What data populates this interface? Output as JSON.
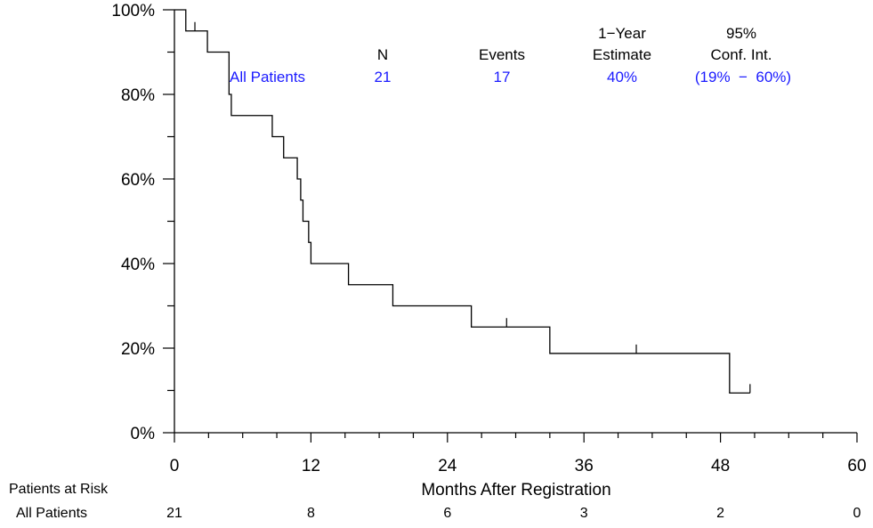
{
  "chart_data": {
    "type": "line",
    "xlabel": "Months After Registration",
    "ylabel": "",
    "xlim": [
      0,
      60
    ],
    "ylim": [
      0,
      100
    ],
    "x_ticks": [
      "0",
      "12",
      "24",
      "36",
      "48",
      "60"
    ],
    "y_ticks": [
      "0%",
      "20%",
      "40%",
      "60%",
      "80%",
      "100%"
    ],
    "series": [
      {
        "name": "All Patients",
        "color": "#000000",
        "steps": [
          [
            0,
            100
          ],
          [
            1.0,
            95
          ],
          [
            2.9,
            90
          ],
          [
            4.8,
            80
          ],
          [
            5.0,
            75
          ],
          [
            8.6,
            70
          ],
          [
            9.6,
            65
          ],
          [
            10.8,
            60
          ],
          [
            11.1,
            55
          ],
          [
            11.3,
            50
          ],
          [
            11.8,
            45
          ],
          [
            12.0,
            40
          ],
          [
            15.3,
            35
          ],
          [
            19.2,
            30
          ],
          [
            26.1,
            25
          ],
          [
            33.0,
            18.75
          ],
          [
            48.8,
            9.4
          ],
          [
            50.6,
            9.4
          ]
        ],
        "censored": [
          [
            1.8,
            95
          ],
          [
            29.2,
            25
          ],
          [
            40.6,
            18.75
          ],
          [
            50.6,
            9.4
          ]
        ]
      }
    ],
    "summary_table": {
      "headers": {
        "n": "N",
        "events": "Events",
        "estimate_line1": "1−Year",
        "estimate_line2": "Estimate",
        "ci_line1": "95%",
        "ci_line2": "Conf. Int."
      },
      "row": {
        "group": "All Patients",
        "n": "21",
        "events": "17",
        "estimate": "40%",
        "ci": "(19%  −  60%)"
      }
    },
    "risk_table": {
      "title": "Patients at Risk",
      "group": "All Patients",
      "x": [
        0,
        12,
        24,
        36,
        48,
        60
      ],
      "counts": [
        "21",
        "8",
        "6",
        "3",
        "2",
        "0"
      ]
    }
  }
}
